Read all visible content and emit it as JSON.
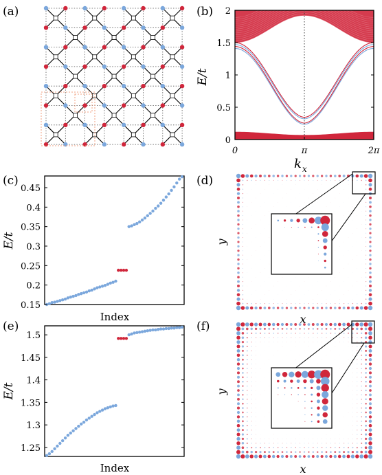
{
  "panel_labels": [
    "(a)",
    "(b)",
    "(c)",
    "(d)",
    "(e)",
    "(f)"
  ],
  "colors": {
    "red": "#d0263b",
    "blue": "#7ba7dc",
    "grid": "#555555",
    "dashed_box": "#f0a080"
  },
  "chart_data": [
    {
      "panel": "(b)",
      "type": "line",
      "xlabel": "k_x",
      "ylabel": "E/t",
      "xlim": [
        0,
        6.2832
      ],
      "ylim": [
        0,
        2
      ],
      "x_ticks": [
        "0",
        "π",
        "2π"
      ],
      "y_ticks": [
        "0",
        "0.5",
        "1",
        "1.5",
        "2"
      ],
      "edge_bands": {
        "top_energy_at_0": 1.41,
        "min_energy_at_pi": [
          0.235,
          0.255,
          0.32,
          0.345
        ]
      },
      "bulk_lower": [
        0,
        0.12
      ],
      "bulk_upper": [
        1.5,
        2
      ]
    },
    {
      "panel": "(c)",
      "type": "scatter",
      "xlabel": "Index",
      "ylabel": "E/t",
      "ylim": [
        0.15,
        0.48
      ],
      "y_ticks": [
        "0.15",
        "0.2",
        "0.25",
        "0.3",
        "0.35",
        "0.4",
        "0.45"
      ],
      "series": [
        {
          "color": "blue",
          "values": [
            0.15,
            0.152,
            0.155,
            0.156,
            0.158,
            0.16,
            0.162,
            0.164,
            0.167,
            0.169,
            0.171,
            0.173,
            0.176,
            0.178,
            0.18,
            0.182,
            0.185,
            0.187,
            0.19,
            0.193,
            0.195,
            0.197,
            0.199,
            0.202,
            0.205,
            0.207,
            0.21
          ]
        },
        {
          "color": "red",
          "values": [
            0.238,
            0.238,
            0.238,
            0.238
          ]
        },
        {
          "color": "blue",
          "values": [
            0.35,
            0.352,
            0.355,
            0.358,
            0.362,
            0.367,
            0.372,
            0.378,
            0.384,
            0.39,
            0.397,
            0.403,
            0.41,
            0.418,
            0.426,
            0.434,
            0.443,
            0.452,
            0.462,
            0.472,
            0.478
          ]
        }
      ]
    },
    {
      "panel": "(e)",
      "type": "scatter",
      "xlabel": "Index",
      "ylabel": "E/t",
      "ylim": [
        1.23,
        1.52
      ],
      "y_ticks": [
        "1.25",
        "1.3",
        "1.35",
        "1.4",
        "1.45",
        "1.5"
      ],
      "series": [
        {
          "color": "blue",
          "values": [
            1.232,
            1.236,
            1.241,
            1.247,
            1.253,
            1.259,
            1.265,
            1.271,
            1.277,
            1.282,
            1.287,
            1.292,
            1.297,
            1.302,
            1.306,
            1.311,
            1.315,
            1.319,
            1.323,
            1.327,
            1.33,
            1.333,
            1.336,
            1.338,
            1.34,
            1.342,
            1.343
          ]
        },
        {
          "color": "red",
          "values": [
            1.492,
            1.492,
            1.492,
            1.492
          ]
        },
        {
          "color": "blue",
          "values": [
            1.5,
            1.502,
            1.504,
            1.505,
            1.506,
            1.507,
            1.508,
            1.509,
            1.51,
            1.511,
            1.511,
            1.512,
            1.513,
            1.513,
            1.514,
            1.514,
            1.515,
            1.515,
            1.516,
            1.516,
            1.517
          ]
        }
      ]
    }
  ],
  "density_panels": [
    {
      "panel": "(d)",
      "xlabel": "x",
      "ylabel": "y"
    },
    {
      "panel": "(f)",
      "xlabel": "x",
      "ylabel": "y"
    }
  ],
  "axis_labels": {
    "b_x": "k",
    "b_x_sub": "x",
    "b_y": "E/t",
    "c_x": "Index",
    "c_y": "E/t",
    "e_x": "Index",
    "e_y": "E/t",
    "d_x": "x",
    "d_y": "y",
    "f_x": "x",
    "f_y": "y"
  }
}
